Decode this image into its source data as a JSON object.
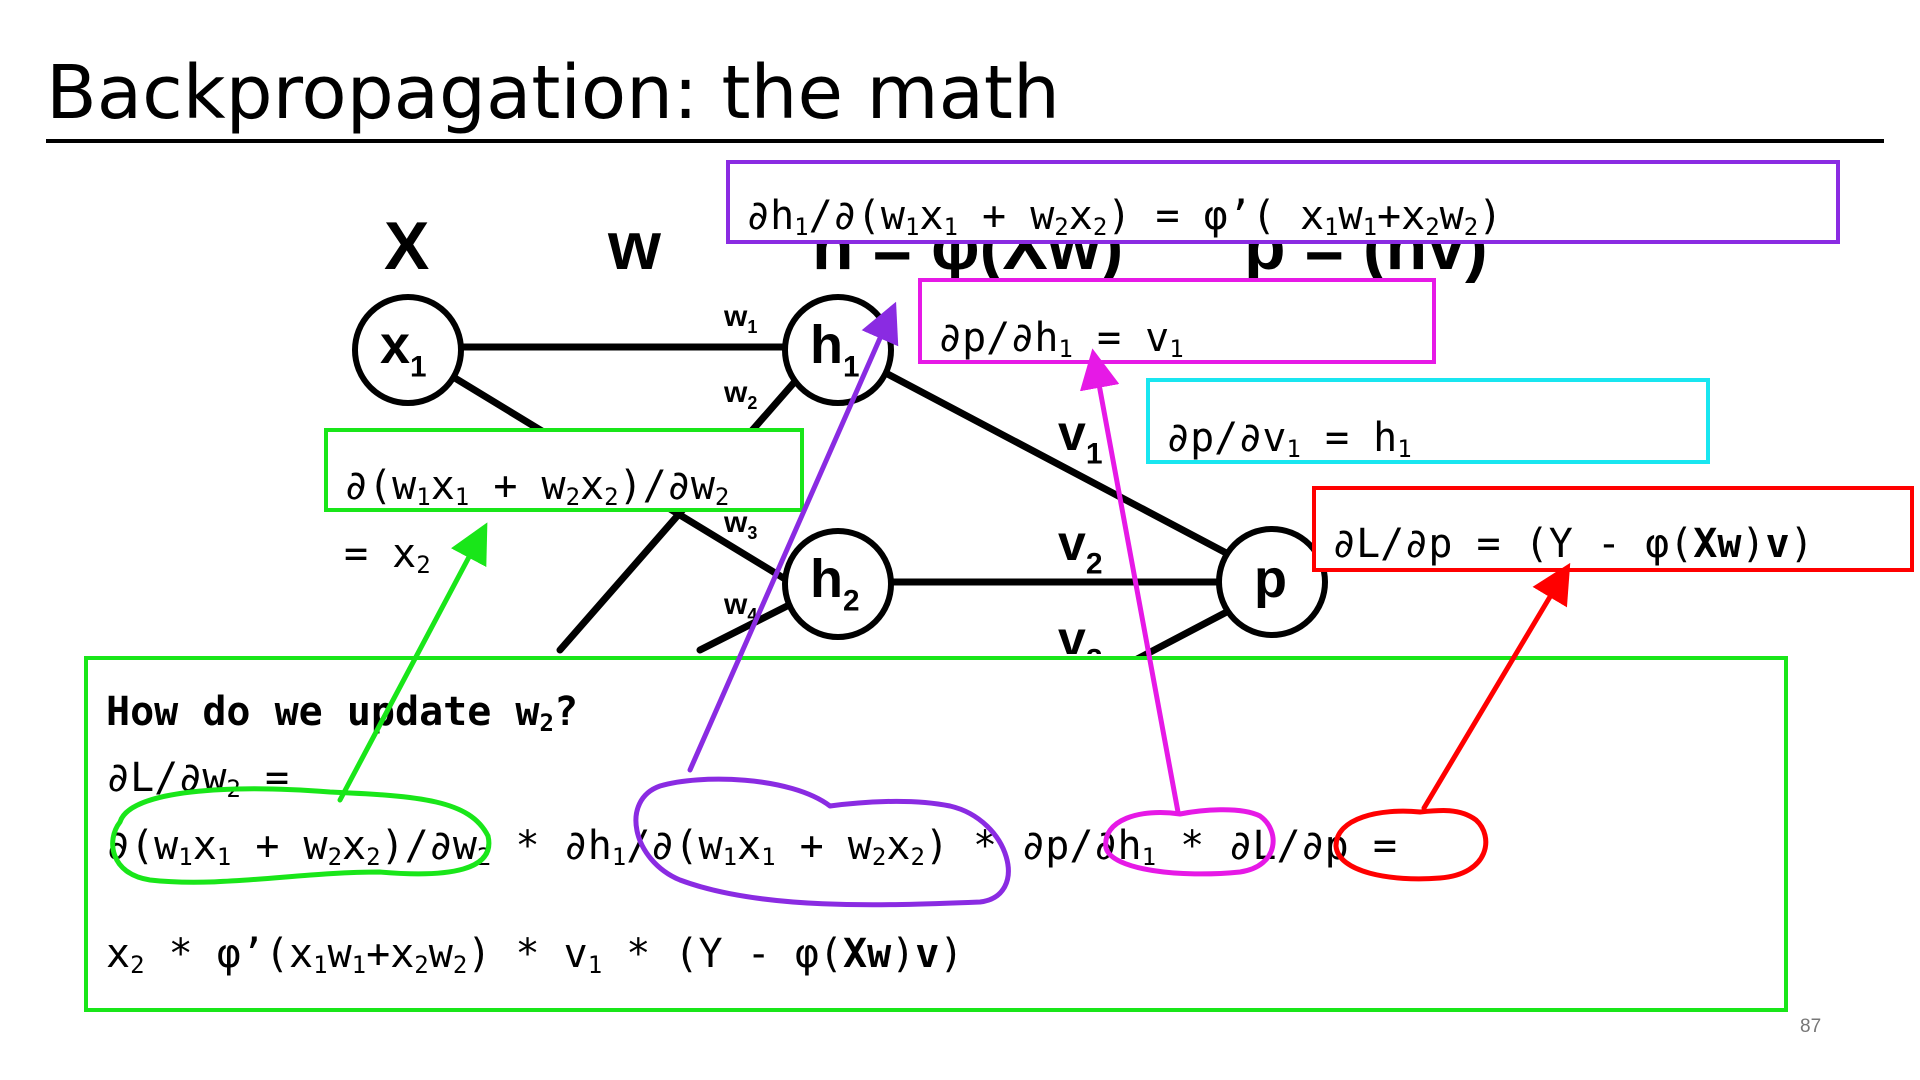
{
  "slide": {
    "title": "Backpropagation: the math",
    "page_number": "87"
  },
  "network": {
    "headers": {
      "x": "X",
      "w": "w",
      "h_text": "h = φ(Xw)",
      "p_text": "p = (hv)"
    },
    "nodes": {
      "x1": {
        "base": "x",
        "sub": "1"
      },
      "h1": {
        "base": "h",
        "sub": "1"
      },
      "h2": {
        "base": "h",
        "sub": "2"
      },
      "p": {
        "base": "p"
      }
    },
    "weights": {
      "w1": {
        "base": "w",
        "sub": "1"
      },
      "w2": {
        "base": "w",
        "sub": "2"
      },
      "w3": {
        "base": "w",
        "sub": "3"
      },
      "w4": {
        "base": "w",
        "sub": "4"
      },
      "v1": {
        "base": "v",
        "sub": "1"
      },
      "v2": {
        "base": "v",
        "sub": "2"
      },
      "v3": {
        "base": "v",
        "sub": "2"
      }
    }
  },
  "annotations": {
    "purple_box": {
      "color": "#8A2BE2",
      "text": "∂h1/∂(w1x1 + w2x2) = φ’( x1w1+x2w2)"
    },
    "magenta_box": {
      "color": "#E619E6",
      "text": "∂p/∂h1 = v1"
    },
    "cyan_box": {
      "color": "#19E6F0",
      "text": "∂p/∂v1 = h1"
    },
    "red_box": {
      "color": "#FF0000",
      "text": "∂L/∂p = (Y - φ(Xw)v)"
    },
    "green_box": {
      "color": "#19E619",
      "line1": "∂(w1x1 + w2x2)/∂w2",
      "line2": "= x2"
    }
  },
  "main_box": {
    "color": "#19E619",
    "question": "How do we update w2?",
    "line1": "∂L/∂w2 =",
    "line2_parts": {
      "term1": "∂(w1x1 + w2x2)/∂w2",
      "op1": " * ",
      "term2": "∂h1/∂(w1x1 + w2x2)",
      "op2": " * ",
      "term3": "∂p/∂h1",
      "op3": " * ",
      "term4": "∂L/∂p",
      "eq": " ="
    },
    "result": "x2 * φ’(x1w1+x2w2) * v1 * (Y - φ(Xw)v)"
  }
}
